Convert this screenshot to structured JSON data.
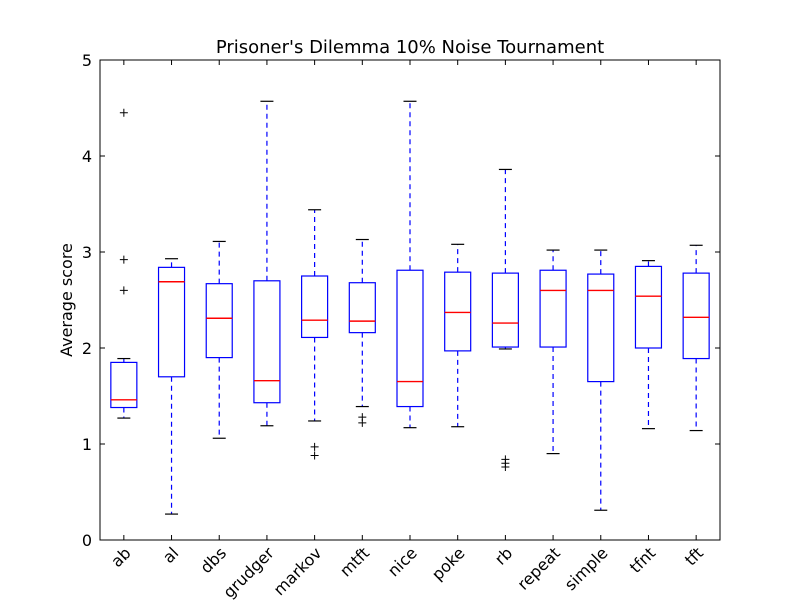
{
  "chart_data": {
    "type": "boxplot",
    "title": "Prisoner's Dilemma 10% Noise Tournament",
    "xlabel": "",
    "ylabel": "Average score",
    "ylim": [
      0,
      5
    ],
    "yticks": [
      0,
      1,
      2,
      3,
      4,
      5
    ],
    "grid": false,
    "box_color": "#0000ff",
    "median_color": "#ff0000",
    "boxes": [
      {
        "label": "ab",
        "whisker_low": 1.27,
        "q1": 1.38,
        "median": 1.46,
        "q3": 1.85,
        "whisker_high": 1.89,
        "outliers": [
          4.45,
          2.92,
          2.6
        ]
      },
      {
        "label": "al",
        "whisker_low": 0.27,
        "q1": 1.7,
        "median": 2.69,
        "q3": 2.84,
        "whisker_high": 2.93,
        "outliers": []
      },
      {
        "label": "dbs",
        "whisker_low": 1.06,
        "q1": 1.9,
        "median": 2.31,
        "q3": 2.67,
        "whisker_high": 3.11,
        "outliers": []
      },
      {
        "label": "grudger",
        "whisker_low": 1.19,
        "q1": 1.43,
        "median": 1.66,
        "q3": 2.7,
        "whisker_high": 4.57,
        "outliers": []
      },
      {
        "label": "markov",
        "whisker_low": 1.24,
        "q1": 2.11,
        "median": 2.29,
        "q3": 2.75,
        "whisker_high": 3.44,
        "outliers": [
          0.97,
          0.88
        ]
      },
      {
        "label": "mtft",
        "whisker_low": 1.39,
        "q1": 2.16,
        "median": 2.28,
        "q3": 2.68,
        "whisker_high": 3.13,
        "outliers": [
          1.28,
          1.22
        ]
      },
      {
        "label": "nice",
        "whisker_low": 1.17,
        "q1": 1.39,
        "median": 1.65,
        "q3": 2.81,
        "whisker_high": 4.57,
        "outliers": []
      },
      {
        "label": "poke",
        "whisker_low": 1.18,
        "q1": 1.97,
        "median": 2.37,
        "q3": 2.79,
        "whisker_high": 3.08,
        "outliers": []
      },
      {
        "label": "rb",
        "whisker_low": 1.99,
        "q1": 2.01,
        "median": 2.26,
        "q3": 2.78,
        "whisker_high": 3.86,
        "outliers": [
          0.84,
          0.8,
          0.76
        ]
      },
      {
        "label": "repeat",
        "whisker_low": 0.9,
        "q1": 2.01,
        "median": 2.6,
        "q3": 2.81,
        "whisker_high": 3.02,
        "outliers": []
      },
      {
        "label": "simple",
        "whisker_low": 0.31,
        "q1": 1.65,
        "median": 2.6,
        "q3": 2.77,
        "whisker_high": 3.02,
        "outliers": []
      },
      {
        "label": "tfnt",
        "whisker_low": 1.16,
        "q1": 2.0,
        "median": 2.54,
        "q3": 2.85,
        "whisker_high": 2.91,
        "outliers": []
      },
      {
        "label": "tft",
        "whisker_low": 1.14,
        "q1": 1.89,
        "median": 2.32,
        "q3": 2.78,
        "whisker_high": 3.07,
        "outliers": []
      }
    ]
  }
}
